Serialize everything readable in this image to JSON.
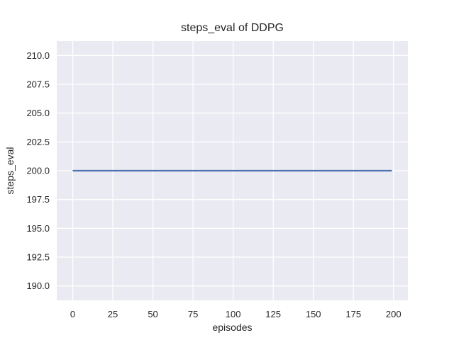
{
  "figure": {
    "title": "steps_eval of DDPG",
    "xlabel": "episodes",
    "ylabel": "steps_eval"
  },
  "colors": {
    "line": "#4c72b0",
    "plot_background": "#eaeaf2",
    "gridline": "#ffffff",
    "text": "#262626"
  },
  "chart_data": {
    "type": "line",
    "title": "steps_eval of DDPG",
    "xlabel": "episodes",
    "ylabel": "steps_eval",
    "x_ticks": [
      0,
      25,
      50,
      75,
      100,
      125,
      150,
      175,
      200
    ],
    "y_ticks": [
      190.0,
      192.5,
      195.0,
      197.5,
      200.0,
      202.5,
      205.0,
      207.5,
      210.0
    ],
    "y_tick_labels": [
      "190.0",
      "192.5",
      "195.0",
      "197.5",
      "200.0",
      "202.5",
      "205.0",
      "207.5",
      "210.0"
    ],
    "xlim": [
      -9.95,
      208.95
    ],
    "ylim": [
      188.75,
      211.25
    ],
    "grid": true,
    "legend_visible": false,
    "series": [
      {
        "name": "steps_eval",
        "x": [
          0,
          199
        ],
        "y": [
          200,
          200
        ],
        "color": "#4c72b0",
        "constant_value": 200
      }
    ]
  }
}
